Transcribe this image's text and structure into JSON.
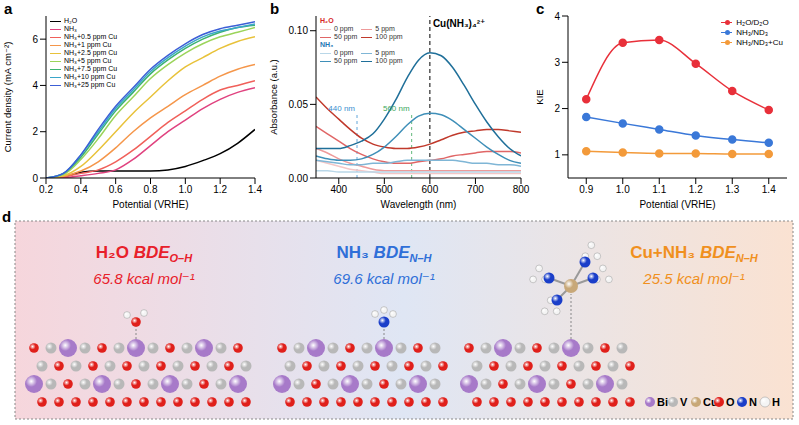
{
  "chart_data": [
    {
      "panel": "a",
      "type": "line",
      "x_label": "Potential (VRHE)",
      "y_label": "Current density (mA cm⁻²)",
      "x": [
        0.2,
        0.3,
        0.4,
        0.5,
        0.6,
        0.7,
        0.8,
        0.9,
        1.0,
        1.1,
        1.2,
        1.3,
        1.4
      ],
      "xlim": [
        0.2,
        1.4
      ],
      "xticks": [
        0.2,
        0.4,
        0.6,
        0.8,
        {
          "value": 1,
          "label": "1.0"
        },
        1.2,
        1.4
      ],
      "ylim": [
        0,
        7
      ],
      "yticks": [
        0,
        2,
        4,
        6
      ],
      "legend": "upper left",
      "series": [
        {
          "name": "H₂O",
          "color": "#000000",
          "values": [
            0,
            0.05,
            0.25,
            0.3,
            0.3,
            0.3,
            0.3,
            0.35,
            0.5,
            0.75,
            1.05,
            1.5,
            2.1
          ]
        },
        {
          "name": "NH₃",
          "color": "#e0427f",
          "values": [
            0,
            0.02,
            0.1,
            0.2,
            0.35,
            0.8,
            1.4,
            2.0,
            2.5,
            3.0,
            3.4,
            3.7,
            3.9
          ]
        },
        {
          "name": "NH₃+0.5 ppm Cu",
          "color": "#f0605a",
          "values": [
            0,
            0.05,
            0.2,
            0.35,
            0.7,
            1.2,
            1.8,
            2.4,
            2.9,
            3.4,
            3.8,
            4.0,
            4.2
          ]
        },
        {
          "name": "NH₃+1 ppm Cu",
          "color": "#f5964a",
          "values": [
            0,
            0.08,
            0.3,
            0.7,
            1.3,
            2.0,
            2.6,
            3.1,
            3.6,
            4.0,
            4.4,
            4.7,
            4.9
          ]
        },
        {
          "name": "NH₃+2.5 ppm Cu",
          "color": "#e8c23a",
          "values": [
            0,
            0.1,
            0.5,
            1.2,
            2.0,
            2.8,
            3.5,
            4.2,
            4.8,
            5.2,
            5.6,
            5.9,
            6.1
          ]
        },
        {
          "name": "NH₃+5 ppm Cu",
          "color": "#9bd45a",
          "values": [
            0,
            0.15,
            0.8,
            1.7,
            2.7,
            3.5,
            4.3,
            4.9,
            5.4,
            5.8,
            6.1,
            6.3,
            6.5
          ]
        },
        {
          "name": "NH₃+7.5 ppm Cu",
          "color": "#3cb371",
          "values": [
            0,
            0.2,
            0.9,
            1.9,
            2.9,
            3.7,
            4.5,
            5.1,
            5.6,
            6.0,
            6.3,
            6.5,
            6.6
          ]
        },
        {
          "name": "NH₃+10 ppm Cu",
          "color": "#3aa6c9",
          "values": [
            0,
            0.2,
            1.0,
            2.0,
            3.0,
            3.8,
            4.6,
            5.2,
            5.7,
            6.1,
            6.35,
            6.5,
            6.65
          ]
        },
        {
          "name": "NH₃+25 ppm Cu",
          "color": "#3c5fd6",
          "values": [
            0,
            0.2,
            1.0,
            2.1,
            3.1,
            3.9,
            4.7,
            5.3,
            5.8,
            6.2,
            6.45,
            6.6,
            6.75
          ]
        }
      ]
    },
    {
      "panel": "b",
      "type": "line",
      "x_label": "Wavelength (nm)",
      "y_label": "Absorbance (a.u.)",
      "x": [
        350,
        375,
        400,
        425,
        450,
        475,
        500,
        525,
        550,
        575,
        600,
        625,
        650,
        675,
        700,
        725,
        750,
        775,
        800
      ],
      "xlim": [
        350,
        800
      ],
      "xticks": [
        400,
        500,
        600,
        700,
        800
      ],
      "ylim": [
        0,
        0.11
      ],
      "yticks": [
        {
          "value": 0,
          "label": "0.00"
        },
        {
          "value": 0.05,
          "label": "0.05"
        },
        {
          "value": 0.1,
          "label": "0.10"
        }
      ],
      "legend": "upper left",
      "groups": [
        {
          "name": "H₂O",
          "color": "#d62728"
        },
        {
          "name": "NH₃",
          "color": "#1f77b4"
        }
      ],
      "series": [
        {
          "group": "H₂O",
          "name": "0 ppm",
          "color": "#f4c6c6",
          "values": [
            0.012,
            0.01,
            0.008,
            0.006,
            0.005,
            0.004,
            0.003,
            0.003,
            0.003,
            0.003,
            0.003,
            0.003,
            0.003,
            0.003,
            0.003,
            0.003,
            0.003,
            0.003,
            0.003
          ]
        },
        {
          "group": "H₂O",
          "name": "5 ppm",
          "color": "#ee9a9a",
          "values": [
            0.02,
            0.017,
            0.013,
            0.01,
            0.008,
            0.006,
            0.005,
            0.005,
            0.005,
            0.005,
            0.005,
            0.005,
            0.005,
            0.005,
            0.005,
            0.005,
            0.005,
            0.005,
            0.005
          ]
        },
        {
          "group": "H₂O",
          "name": "50 ppm",
          "color": "#e06666",
          "values": [
            0.035,
            0.03,
            0.025,
            0.02,
            0.016,
            0.013,
            0.011,
            0.01,
            0.01,
            0.011,
            0.012,
            0.013,
            0.015,
            0.016,
            0.017,
            0.018,
            0.018,
            0.018,
            0.017
          ]
        },
        {
          "group": "H₂O",
          "name": "100 ppm",
          "color": "#c0392b",
          "values": [
            0.055,
            0.047,
            0.04,
            0.033,
            0.027,
            0.023,
            0.021,
            0.02,
            0.02,
            0.021,
            0.023,
            0.026,
            0.029,
            0.031,
            0.032,
            0.033,
            0.033,
            0.032,
            0.031
          ]
        },
        {
          "group": "NH₃",
          "name": "0 ppm",
          "color": "#b9d7e8",
          "values": [
            0.005,
            0.005,
            0.004,
            0.004,
            0.004,
            0.004,
            0.004,
            0.004,
            0.004,
            0.004,
            0.004,
            0.004,
            0.004,
            0.004,
            0.004,
            0.004,
            0.004,
            0.004,
            0.004
          ]
        },
        {
          "group": "NH₃",
          "name": "5 ppm",
          "color": "#7fb6d6",
          "values": [
            0.012,
            0.011,
            0.01,
            0.009,
            0.009,
            0.01,
            0.01,
            0.011,
            0.012,
            0.012,
            0.012,
            0.012,
            0.012,
            0.011,
            0.01,
            0.01,
            0.009,
            0.009,
            0.008
          ]
        },
        {
          "group": "NH₃",
          "name": "50 ppm",
          "color": "#3f8fb8",
          "values": [
            0.015,
            0.013,
            0.012,
            0.012,
            0.013,
            0.016,
            0.021,
            0.028,
            0.036,
            0.042,
            0.044,
            0.043,
            0.039,
            0.033,
            0.027,
            0.021,
            0.016,
            0.012,
            0.01
          ]
        },
        {
          "group": "NH₃",
          "name": "100 ppm",
          "color": "#1f6f99",
          "values": [
            0.02,
            0.02,
            0.02,
            0.022,
            0.025,
            0.03,
            0.04,
            0.053,
            0.068,
            0.08,
            0.085,
            0.083,
            0.075,
            0.063,
            0.05,
            0.038,
            0.028,
            0.02,
            0.015
          ]
        }
      ],
      "annotations": [
        {
          "x": 440,
          "label": "440 nm",
          "color": "#3b8fd0"
        },
        {
          "x": 560,
          "label": "560 nm",
          "color": "#3aa65a"
        },
        {
          "x": 600,
          "label": "Cu(NH₃)₄²⁺",
          "color": "#000000"
        }
      ]
    },
    {
      "panel": "c",
      "type": "line",
      "x_label": "Potential (VRHE)",
      "y_label": "KIE",
      "marker": "circle",
      "x": [
        0.9,
        1.0,
        1.1,
        1.2,
        1.3,
        1.4
      ],
      "xlim": [
        0.85,
        1.45
      ],
      "xticks": [
        0.9,
        {
          "value": 1,
          "label": "1.0"
        },
        1.1,
        1.2,
        1.3,
        1.4
      ],
      "ylim": [
        0.5,
        4
      ],
      "yticks": [
        1,
        2,
        3,
        4
      ],
      "legend": "upper right",
      "series": [
        {
          "name": "H₂O/D₂O",
          "color": "#e8303a",
          "values": [
            2.2,
            3.42,
            3.48,
            2.97,
            2.38,
            1.97
          ]
        },
        {
          "name": "NH₃/ND₃",
          "color": "#3a78d8",
          "values": [
            1.82,
            1.68,
            1.55,
            1.42,
            1.33,
            1.26
          ]
        },
        {
          "name": "NH₃/ND₃+Cu",
          "color": "#f39a3a",
          "values": [
            1.08,
            1.05,
            1.03,
            1.03,
            1.02,
            1.02
          ]
        }
      ]
    }
  ],
  "diagram": {
    "panel": "d",
    "sections": [
      {
        "molecule": "H₂O",
        "quantity": "BDE",
        "bond": "O–H",
        "value": "65.8 kcal mol⁻¹",
        "color": "#e8202a"
      },
      {
        "molecule": "NH₃",
        "quantity": "BDE",
        "bond": "N–H",
        "value": "69.6 kcal mol⁻¹",
        "color": "#2f6fd8"
      },
      {
        "molecule": "Cu+NH₃",
        "quantity": "BDE",
        "bond": "N–H",
        "value": "25.5 kcal mol⁻¹",
        "color": "#f0901e"
      }
    ],
    "atoms": [
      {
        "label": "Bi",
        "color": "#a77ac9"
      },
      {
        "label": "V",
        "color": "#b8b8b8"
      },
      {
        "label": "Cu",
        "color": "#c8a878"
      },
      {
        "label": "O",
        "color": "#e0201b"
      },
      {
        "label": "N",
        "color": "#1a3ec9"
      },
      {
        "label": "H",
        "color": "#f4f4f4"
      }
    ]
  }
}
